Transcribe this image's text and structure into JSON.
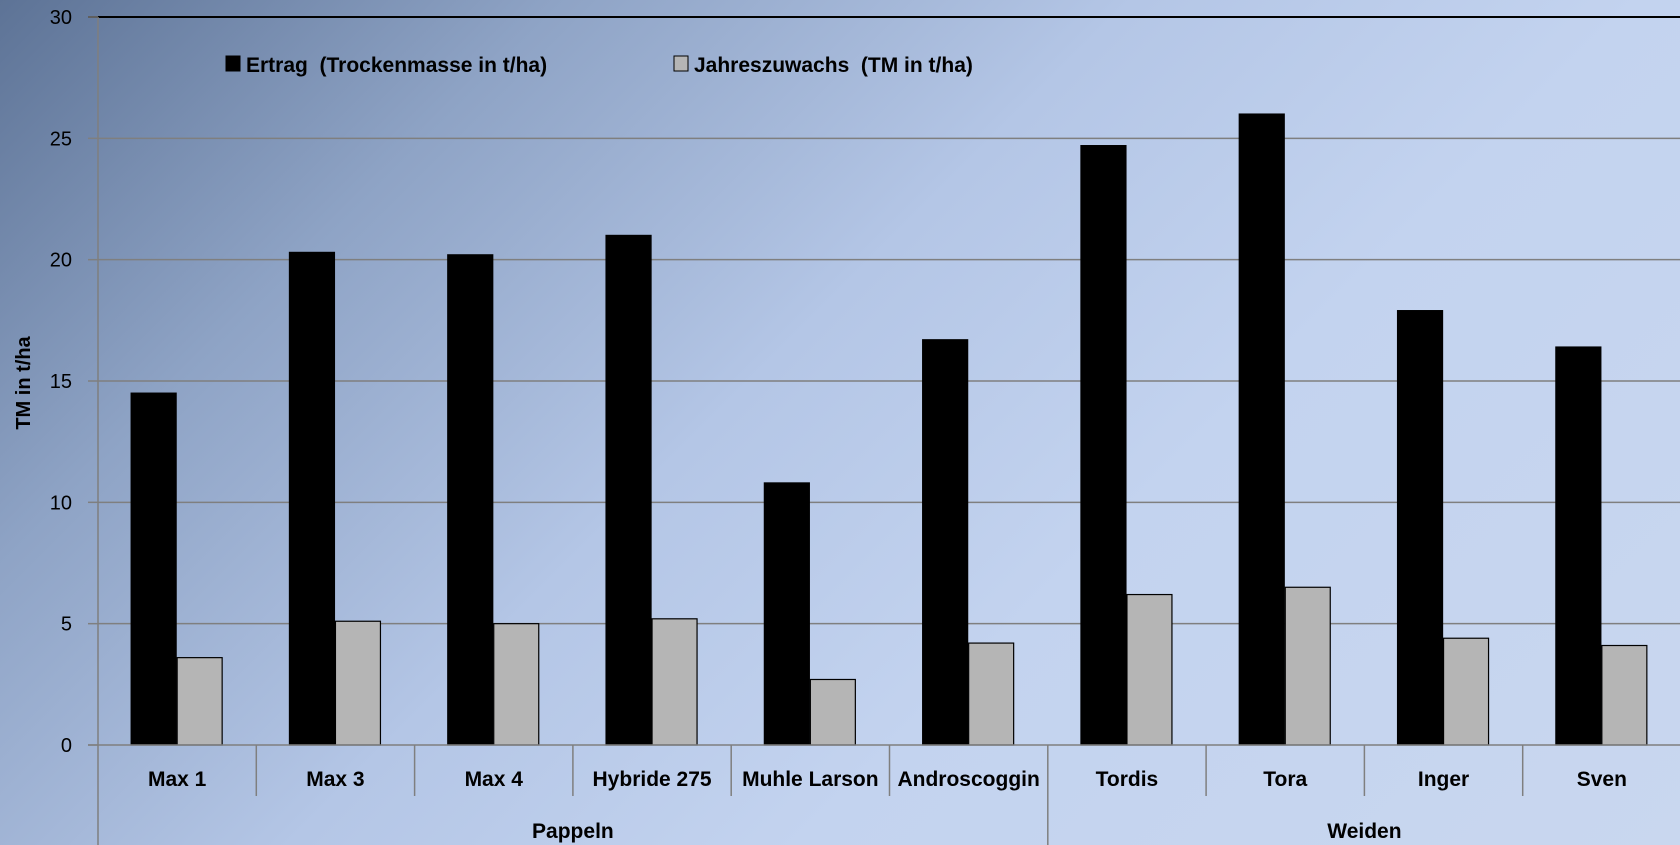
{
  "chart_data": {
    "type": "bar",
    "categories": [
      "Max 1",
      "Max 3",
      "Max 4",
      "Hybride 275",
      "Muhle Larson",
      "Androscoggin",
      "Tordis",
      "Tora",
      "Inger",
      "Sven"
    ],
    "groups": [
      {
        "name": "Pappeln",
        "start": 0,
        "end": 5
      },
      {
        "name": "Weiden",
        "start": 6,
        "end": 9
      }
    ],
    "series": [
      {
        "name": "Ertrag  (Trockenmasse in t/ha)",
        "color": "#000000",
        "values": [
          14.5,
          20.3,
          20.2,
          21.0,
          10.8,
          16.7,
          24.7,
          26.0,
          17.9,
          16.4
        ]
      },
      {
        "name": "Jahreszuwachs  (TM in t/ha)",
        "color": "#b5b5b5",
        "values": [
          3.6,
          5.1,
          5.0,
          5.2,
          2.7,
          4.2,
          6.2,
          6.5,
          4.4,
          4.1
        ]
      }
    ],
    "ylabel": "TM in t/ha",
    "ylim": [
      0,
      30
    ],
    "yticks": [
      "0",
      "5",
      "10",
      "15",
      "20",
      "25",
      "30"
    ],
    "grid": true,
    "legend_position": "top-left"
  }
}
